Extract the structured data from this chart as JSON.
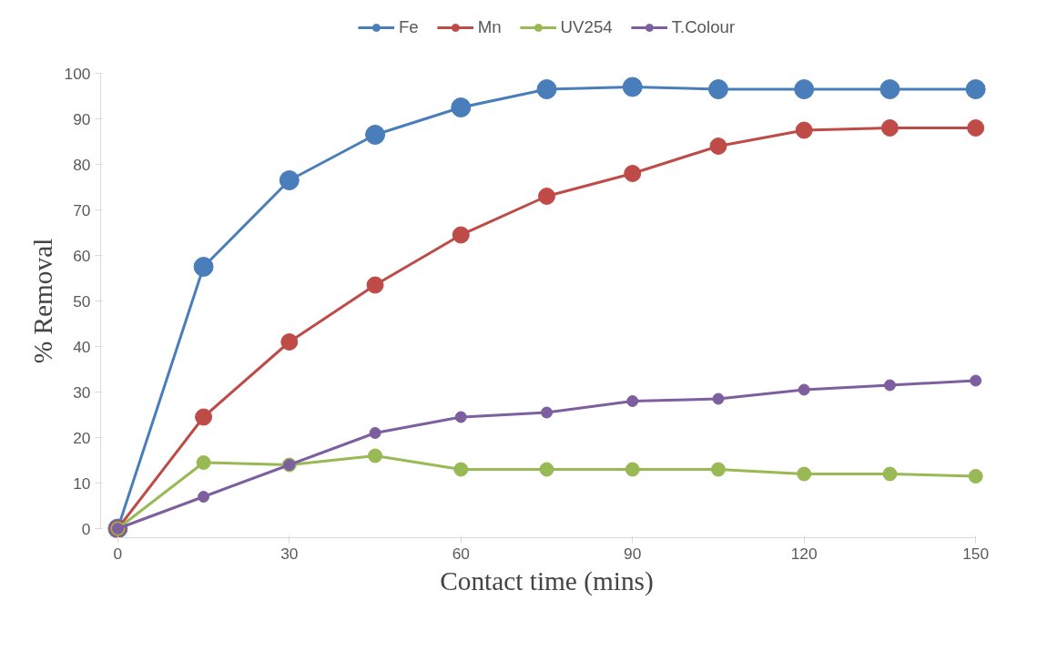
{
  "chart_data": {
    "type": "line",
    "xlabel": "Contact time (mins)",
    "ylabel": "% Removal",
    "x": [
      0,
      15,
      30,
      45,
      60,
      75,
      90,
      105,
      120,
      135,
      150
    ],
    "series": [
      {
        "name": "Fe",
        "color": "#4a7ebb",
        "values": [
          0,
          57.5,
          76.5,
          86.5,
          92.5,
          96.5,
          97,
          96.5,
          96.5,
          96.5,
          96.5
        ]
      },
      {
        "name": "Mn",
        "color": "#be4b48",
        "values": [
          0,
          24.5,
          41,
          53.5,
          64.5,
          73,
          78,
          84,
          87.5,
          88,
          88
        ]
      },
      {
        "name": "UV254",
        "color": "#98b954",
        "values": [
          0,
          14.5,
          14,
          16,
          13,
          13,
          13,
          13,
          12,
          12,
          11.5
        ]
      },
      {
        "name": "T.Colour",
        "color": "#7d5fa0",
        "values": [
          0,
          7,
          14,
          21,
          24.5,
          25.5,
          28,
          28.5,
          30.5,
          31.5,
          32.5
        ]
      }
    ],
    "xlim": [
      0,
      150
    ],
    "xticks": [
      0,
      30,
      60,
      90,
      120,
      150
    ],
    "ylim": [
      0,
      100
    ],
    "yticks": [
      0,
      10,
      20,
      30,
      40,
      50,
      60,
      70,
      80,
      90,
      100
    ],
    "grid": false,
    "legend": "top",
    "marker": "circle",
    "line_style": "solid"
  }
}
